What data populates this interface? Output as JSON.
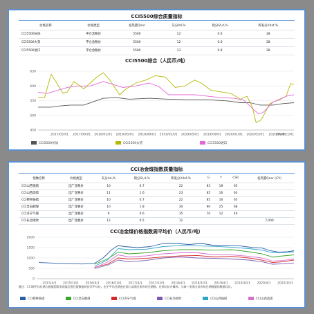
{
  "panel1": {
    "table": {
      "title": "CCI5500综合质量指标",
      "headers": [
        "价格名称",
        "价格类型",
        "发热量Qnar",
        "灰分Ad,%",
        "硫分St,d,%",
        "挥发分Vdaf,%"
      ],
      "rows": [
        [
          "CCI5500长协",
          "平仓含税价",
          "5500",
          "12",
          "0.6",
          "28"
        ],
        [
          "CCI5500大货",
          "平仓含税价",
          "5500",
          "12",
          "0.6",
          "28"
        ],
        [
          "CCI5500进口",
          "平仓含税价",
          "5500",
          "13",
          "0.8",
          "28"
        ]
      ]
    },
    "chart_title": "CCI5500综合（人民币/吨）"
  },
  "panel2": {
    "table": {
      "title": "CCI冶金煤指数质量指标",
      "headers": [
        "指数名称",
        "价格类型",
        "灰分Ad,%",
        "硫分St,d,%",
        "挥发分Vdaf,%",
        "G",
        "Y",
        "CSR",
        "发热量Qnar (CV)"
      ],
      "rows": [
        [
          "CCI山西低硫",
          "出厂含税价",
          "10",
          "0.7",
          "22",
          "83",
          "18",
          "65",
          ""
        ],
        [
          "CCI山西高硫",
          "出厂含税价",
          "11",
          "1.6",
          "23",
          "85",
          "16",
          "63",
          ""
        ],
        [
          "CCI柳林低硫",
          "出厂含税价",
          "10",
          "0.7",
          "22",
          "85",
          "16",
          "65",
          ""
        ],
        [
          "CCI灵石肥煤",
          "出厂含税价",
          "10",
          "1.8",
          "30",
          "90",
          "25",
          "68",
          ""
        ],
        [
          "CCI济宁气煤",
          "出厂含税价",
          "9",
          "0.6",
          "35",
          "70",
          "12",
          "40",
          ""
        ],
        [
          "CCI长治喷吹",
          "出厂含税价",
          "12",
          "0.5",
          "12",
          "",
          "",
          "",
          "7,000"
        ]
      ]
    },
    "chart_title": "CCI冶金煤价格指数周平均价（人民币/吨）",
    "footnote": "备注：CCI周平均价格为根据国家发改委全国日报数据的技术平均价。由于平均日期由在周六或周日发布时日期数，在周均价计算时，与每一发周五发布的日期数据的数据均价。"
  },
  "chart_data": [
    {
      "type": "line",
      "title": "CCI5500综合（人民币/吨）",
      "x_ticks": [
        "2017/05/01",
        "2017/09/01",
        "2018/01/01",
        "2018/05/01",
        "2018/09/01",
        "2019/01/01",
        "2019/05/01",
        "2019/09/01",
        "2020/01/01",
        "2020/05/01",
        "2020/09/01"
      ],
      "x_tick_positions": [
        2017.33,
        2017.67,
        2018.0,
        2018.33,
        2018.67,
        2019.0,
        2019.33,
        2019.67,
        2020.0,
        2020.33,
        2020.67
      ],
      "x_last_label": "2020/11/01",
      "x_range": [
        2017.0,
        2020.92
      ],
      "ylim": [
        450,
        650
      ],
      "y_ticks": [
        450,
        500,
        550,
        600,
        650
      ],
      "grid": true,
      "legend_position": "bottom",
      "series": [
        {
          "name": "CCI5500长协",
          "color": "#555555",
          "x": [
            2017.0,
            2017.2,
            2017.35,
            2017.5,
            2017.7,
            2018.0,
            2018.2,
            2018.4,
            2018.7,
            2019.0,
            2019.3,
            2019.6,
            2019.9,
            2020.1,
            2020.25,
            2020.4,
            2020.6,
            2020.75,
            2020.92
          ],
          "y": [
            528,
            528,
            532,
            535,
            535,
            558,
            560,
            555,
            558,
            555,
            553,
            553,
            549,
            543,
            543,
            535,
            535,
            540,
            543
          ]
        },
        {
          "name": "CCI5500大货",
          "color": "#b5b800",
          "x": [
            2017.0,
            2017.1,
            2017.2,
            2017.3,
            2017.38,
            2017.45,
            2017.55,
            2017.7,
            2017.9,
            2018.0,
            2018.1,
            2018.25,
            2018.35,
            2018.5,
            2018.65,
            2018.8,
            2018.95,
            2019.1,
            2019.25,
            2019.4,
            2019.5,
            2019.65,
            2019.8,
            2019.95,
            2020.1,
            2020.2,
            2020.28,
            2020.34,
            2020.42,
            2020.55,
            2020.7,
            2020.8,
            2020.87,
            2020.92
          ],
          "y": [
            560,
            560,
            640,
            605,
            575,
            580,
            615,
            590,
            630,
            645,
            620,
            570,
            590,
            610,
            620,
            635,
            630,
            595,
            600,
            620,
            610,
            585,
            580,
            575,
            555,
            565,
            530,
            475,
            485,
            540,
            555,
            565,
            608,
            605
          ]
        },
        {
          "name": "CCI5500进口",
          "color": "#e466d8",
          "x": [
            2017.0,
            2017.15,
            2017.3,
            2017.45,
            2017.6,
            2017.8,
            2018.0,
            2018.15,
            2018.3,
            2018.5,
            2018.7,
            2018.85,
            2019.0,
            2019.2,
            2019.4,
            2019.6,
            2019.8,
            2020.0,
            2020.15,
            2020.3,
            2020.38,
            2020.45,
            2020.6,
            2020.7,
            2020.8,
            2020.92
          ],
          "y": [
            578,
            575,
            585,
            595,
            600,
            600,
            615,
            605,
            595,
            600,
            610,
            598,
            570,
            570,
            570,
            565,
            560,
            558,
            552,
            520,
            505,
            510,
            545,
            553,
            565,
            570
          ]
        }
      ]
    },
    {
      "type": "line",
      "title": "CCI冶金煤价格指数周平均价（人民币/吨）",
      "x_ticks": [
        "2015/4/1",
        "2015/10/1",
        "2016/4/1",
        "2016/10/1",
        "2017/4/1",
        "2017/10/1",
        "2018/4/1",
        "2018/10/1",
        "2019/4/1",
        "2019/10/1",
        "2020/4/1",
        "2020/10/1"
      ],
      "x_tick_positions": [
        2015.25,
        2015.75,
        2016.25,
        2016.75,
        2017.25,
        2017.75,
        2018.25,
        2018.75,
        2019.25,
        2019.75,
        2020.25,
        2020.75
      ],
      "x_range": [
        2014.95,
        2020.95
      ],
      "ylim": [
        0,
        2000
      ],
      "y_ticks": [
        0,
        500,
        1000,
        1500,
        2000
      ],
      "grid": true,
      "legend_position": "bottom",
      "series": [
        {
          "name": "CCI柳林低硫",
          "color": "#2b5faa",
          "x": [
            2015.0,
            2015.5,
            2016.0,
            2016.3,
            2016.5,
            2016.7,
            2016.85,
            2017.0,
            2017.3,
            2017.6,
            2017.9,
            2018.2,
            2018.5,
            2018.8,
            2019.1,
            2019.4,
            2019.7,
            2020.0,
            2020.2,
            2020.4,
            2020.6,
            2020.8,
            2020.95
          ],
          "y": [
            780,
            740,
            710,
            740,
            1000,
            1400,
            1600,
            1550,
            1500,
            1550,
            1700,
            1700,
            1650,
            1700,
            1600,
            1620,
            1580,
            1500,
            1480,
            1350,
            1280,
            1300,
            1350
          ]
        },
        {
          "name": "CCI灵石肥煤",
          "color": "#3aa52a",
          "x": [
            2016.3,
            2016.6,
            2016.85,
            2017.1,
            2017.5,
            2017.9,
            2018.3,
            2018.7,
            2019.1,
            2019.5,
            2019.9,
            2020.2,
            2020.45,
            2020.7,
            2020.95
          ],
          "y": [
            700,
            950,
            1280,
            1200,
            1250,
            1350,
            1400,
            1400,
            1380,
            1400,
            1300,
            1200,
            1050,
            1100,
            1150
          ]
        },
        {
          "name": "CCI济宁气煤",
          "color": "#d62828",
          "x": [
            2016.3,
            2016.6,
            2016.85,
            2017.1,
            2017.5,
            2017.9,
            2018.3,
            2018.7,
            2019.1,
            2019.5,
            2019.9,
            2020.2,
            2020.45,
            2020.7,
            2020.95
          ],
          "y": [
            550,
            700,
            1000,
            950,
            980,
            1050,
            1100,
            1120,
            1050,
            1080,
            1000,
            900,
            780,
            820,
            900
          ]
        },
        {
          "name": "CCI长治喷吹",
          "color": "#7a5bb0",
          "x": [
            2016.3,
            2016.6,
            2016.85,
            2017.1,
            2017.5,
            2017.9,
            2018.3,
            2018.7,
            2019.1,
            2019.5,
            2019.9,
            2020.2,
            2020.45,
            2020.7,
            2020.95
          ],
          "y": [
            500,
            650,
            900,
            820,
            880,
            1000,
            1050,
            1000,
            980,
            950,
            900,
            820,
            700,
            720,
            760
          ]
        },
        {
          "name": "CCI山西低硫",
          "color": "#2ca5c9",
          "x": [
            2016.3,
            2016.6,
            2016.85,
            2017.1,
            2017.5,
            2017.9,
            2018.3,
            2018.7,
            2019.1,
            2019.5,
            2019.9,
            2020.2,
            2020.45,
            2020.7,
            2020.95
          ],
          "y": [
            600,
            900,
            1450,
            1400,
            1420,
            1550,
            1600,
            1580,
            1560,
            1520,
            1450,
            1380,
            1250,
            1260,
            1300
          ]
        },
        {
          "name": "CCI山西高硫",
          "color": "#d86fd0",
          "x": [
            2016.3,
            2016.6,
            2016.85,
            2017.1,
            2017.5,
            2017.9,
            2018.3,
            2018.7,
            2019.1,
            2019.5,
            2019.9,
            2020.2,
            2020.45,
            2020.7,
            2020.95
          ],
          "y": [
            520,
            800,
            1150,
            1050,
            1100,
            1200,
            1250,
            1250,
            1150,
            1150,
            1080,
            1000,
            850,
            880,
            950
          ]
        }
      ]
    }
  ]
}
